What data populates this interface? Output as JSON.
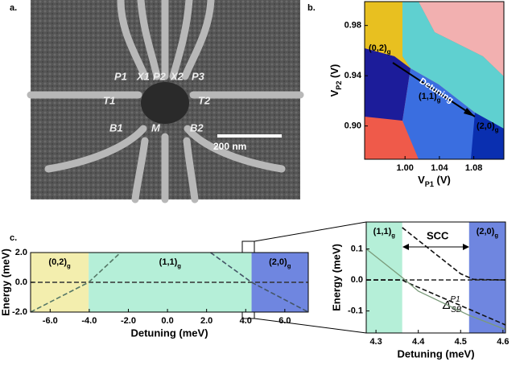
{
  "panel_a": {
    "label": "a.",
    "gate_labels": [
      "P1",
      "X1",
      "P2",
      "X2",
      "P3",
      "T1",
      "T2",
      "B1",
      "M",
      "B2"
    ],
    "scale_bar": "200 nm"
  },
  "chart_data": [
    {
      "type": "image",
      "label": "b.",
      "xlabel": [
        "V",
        "P1",
        " (V)"
      ],
      "ylabel": [
        "V",
        "P2",
        " (V)"
      ],
      "xlim": [
        0.953,
        1.115
      ],
      "ylim": [
        0.8735,
        0.999
      ],
      "xticks": [
        {
          "value": 1,
          "label": "1.00"
        },
        1.04,
        1.08
      ],
      "yticks": [
        {
          "value": 0.9,
          "label": "0.90"
        },
        0.94,
        0.98
      ],
      "annotations": [
        [
          "(0,2)",
          "g"
        ],
        [
          "(1,1)",
          "g"
        ],
        [
          "(2,0)",
          "g"
        ],
        "Detuning"
      ]
    },
    {
      "type": "line",
      "label": "c.",
      "xlabel": "Detuning (meV)",
      "ylabel": "Energy (meV)",
      "xlim": [
        -7,
        7.2
      ],
      "ylim": [
        -2,
        2
      ],
      "xticks": [
        {
          "value": -6,
          "label": "-6.0"
        },
        {
          "value": -4,
          "label": "-4.0"
        },
        {
          "value": -2,
          "label": "-2.0"
        },
        {
          "value": 0,
          "label": "0.0"
        },
        {
          "value": 2,
          "label": "2.0"
        },
        {
          "value": 4,
          "label": "4.0"
        },
        {
          "value": 6,
          "label": "6.0"
        }
      ],
      "yticks": [
        {
          "value": -2,
          "label": "-2.0"
        },
        {
          "value": 0,
          "label": "0.0"
        },
        {
          "value": 2,
          "label": "2.0"
        }
      ],
      "regions": [
        {
          "label": [
            "(0,2)",
            "g"
          ],
          "xrange": [
            -7,
            -4.03
          ],
          "color": "#f3eeae"
        },
        {
          "label": [
            "(1,1)",
            "g"
          ],
          "xrange": [
            -4.03,
            4.3
          ],
          "color": "#b5efd8"
        },
        {
          "label": [
            "(2,0)",
            "g"
          ],
          "xrange": [
            4.3,
            7.2
          ],
          "color": "#6f86e0"
        }
      ],
      "series": [
        {
          "x": [
            -7,
            7.2
          ],
          "values": [
            0,
            0
          ],
          "color": "#333333",
          "dash": true
        },
        {
          "x": [
            -7,
            -4.03,
            -2.4
          ],
          "values": [
            -2,
            0,
            2
          ],
          "color": "#557766",
          "dash": true
        },
        {
          "x": [
            2.2,
            4.3,
            7.2
          ],
          "values": [
            2,
            0,
            -2
          ],
          "color": "#445566",
          "dash": true
        }
      ]
    },
    {
      "type": "line",
      "xlabel": "Detuning (meV)",
      "ylabel": "Energy (meV)",
      "xlim": [
        4.277,
        4.606
      ],
      "ylim": [
        -0.171,
        0.187
      ],
      "xticks": [
        4.3,
        4.4,
        4.5,
        4.6
      ],
      "yticks": [
        -0.1,
        {
          "value": 0,
          "label": "0.0"
        },
        0.1
      ],
      "regions": [
        {
          "label": [
            "(1,1)",
            "g"
          ],
          "xrange": [
            4.277,
            4.362
          ],
          "color": "#b5efd8"
        },
        {
          "label": [
            "(2,0)",
            "g"
          ],
          "xrange": [
            4.52,
            4.606
          ],
          "color": "#6f86e0"
        }
      ],
      "series": [
        {
          "x": [
            4.277,
            4.606
          ],
          "values": [
            0,
            0
          ],
          "color": "#333333",
          "dash": true
        },
        {
          "x": [
            4.362,
            4.5,
            4.53,
            4.606
          ],
          "values": [
            0.169,
            0.02,
            0.002,
            0
          ],
          "color": "#111111",
          "dash": true
        },
        {
          "x": [
            4.277,
            4.362,
            4.37,
            4.606
          ],
          "values": [
            0,
            0,
            -0.006,
            -0.145
          ],
          "color": "#111111",
          "dash": true
        },
        {
          "x": [
            4.277,
            4.362,
            4.4,
            4.52,
            4.606
          ],
          "values": [
            0.1,
            0.008,
            -0.036,
            -0.114,
            -0.16
          ],
          "color": "#7a9a7a",
          "dash": false
        }
      ],
      "annotations": [
        "SCC",
        [
          "Δ",
          "SB",
          "P1"
        ]
      ]
    }
  ]
}
